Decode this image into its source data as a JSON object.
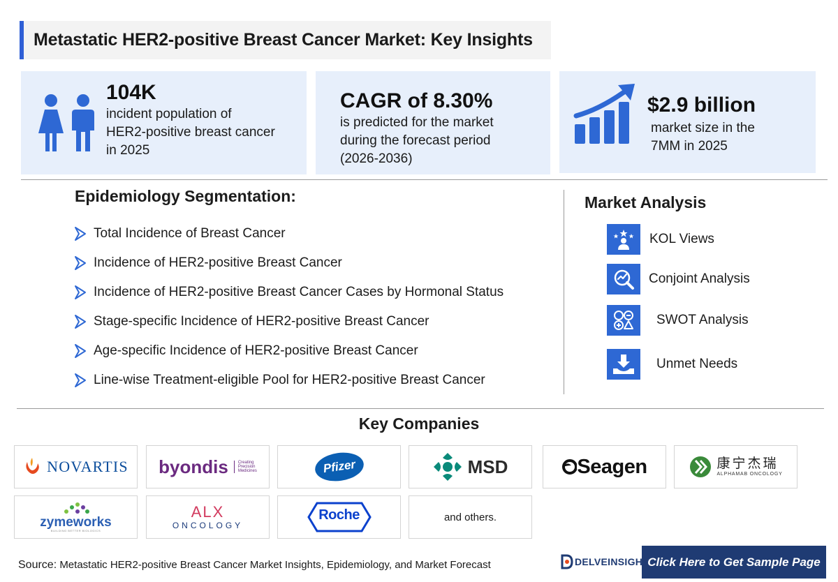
{
  "title": "Metastatic HER2-positive Breast Cancer Market: Key Insights",
  "stats": {
    "incidence": {
      "value": "104K",
      "lines": [
        "incident population of",
        "HER2-positive breast cancer",
        "in 2025"
      ],
      "icon": "people-icon"
    },
    "cagr": {
      "value": "CAGR of 8.30%",
      "lines": [
        "is predicted for the market",
        "during the forecast period",
        "(2026-2036)"
      ]
    },
    "market": {
      "value": "$2.9 billion",
      "lines": [
        "market size in the",
        "7MM in 2025"
      ],
      "icon": "growth-chart-icon"
    }
  },
  "epidemiology": {
    "title": "Epidemiology Segmentation:",
    "items": [
      "Total Incidence of Breast Cancer",
      "Incidence of HER2-positive Breast Cancer",
      "Incidence of HER2-positive Breast Cancer Cases by Hormonal Status",
      "Stage-specific Incidence of HER2-positive Breast Cancer",
      "Age-specific Incidence of HER2-positive Breast Cancer",
      "Line-wise Treatment-eligible Pool for HER2-positive Breast Cancer"
    ]
  },
  "market_analysis": {
    "title": "Market Analysis",
    "items": [
      {
        "label": "KOL Views",
        "icon": "kol-icon"
      },
      {
        "label": "Conjoint Analysis",
        "icon": "conjoint-icon"
      },
      {
        "label": "SWOT Analysis",
        "icon": "swot-icon"
      },
      {
        "label": "Unmet Needs",
        "icon": "unmet-needs-icon"
      }
    ]
  },
  "key_companies": {
    "title": "Key Companies",
    "logos": {
      "novartis": "NOVARTIS",
      "byondis": "byondis",
      "byondis_tag": [
        "Creating",
        "Precision",
        "Medicines"
      ],
      "pfizer": "Pfizer",
      "msd": "MSD",
      "seagen": "Seagen",
      "alphamab_cn": "康宁杰瑞",
      "alphamab_en": "ALPHAMAB ONCOLOGY",
      "zymeworks": "zymeworks",
      "zymeworks_tag": "BUILDING BETTER BIOLOGICS",
      "alx_top": "ALX",
      "alx_bottom": "ONCOLOGY",
      "roche": "Roche"
    },
    "others": "and others."
  },
  "footer": {
    "source_label": "Source:",
    "source_text": "Metastatic HER2-positive Breast Cancer Market Insights, Epidemiology, and Market Forecast",
    "brand": "DELVEINSIGHT",
    "cta": "Click Here to Get Sample Page"
  },
  "colors": {
    "accent": "#2e68d4",
    "panel": "#e7effb",
    "cta": "#1f3b73"
  }
}
